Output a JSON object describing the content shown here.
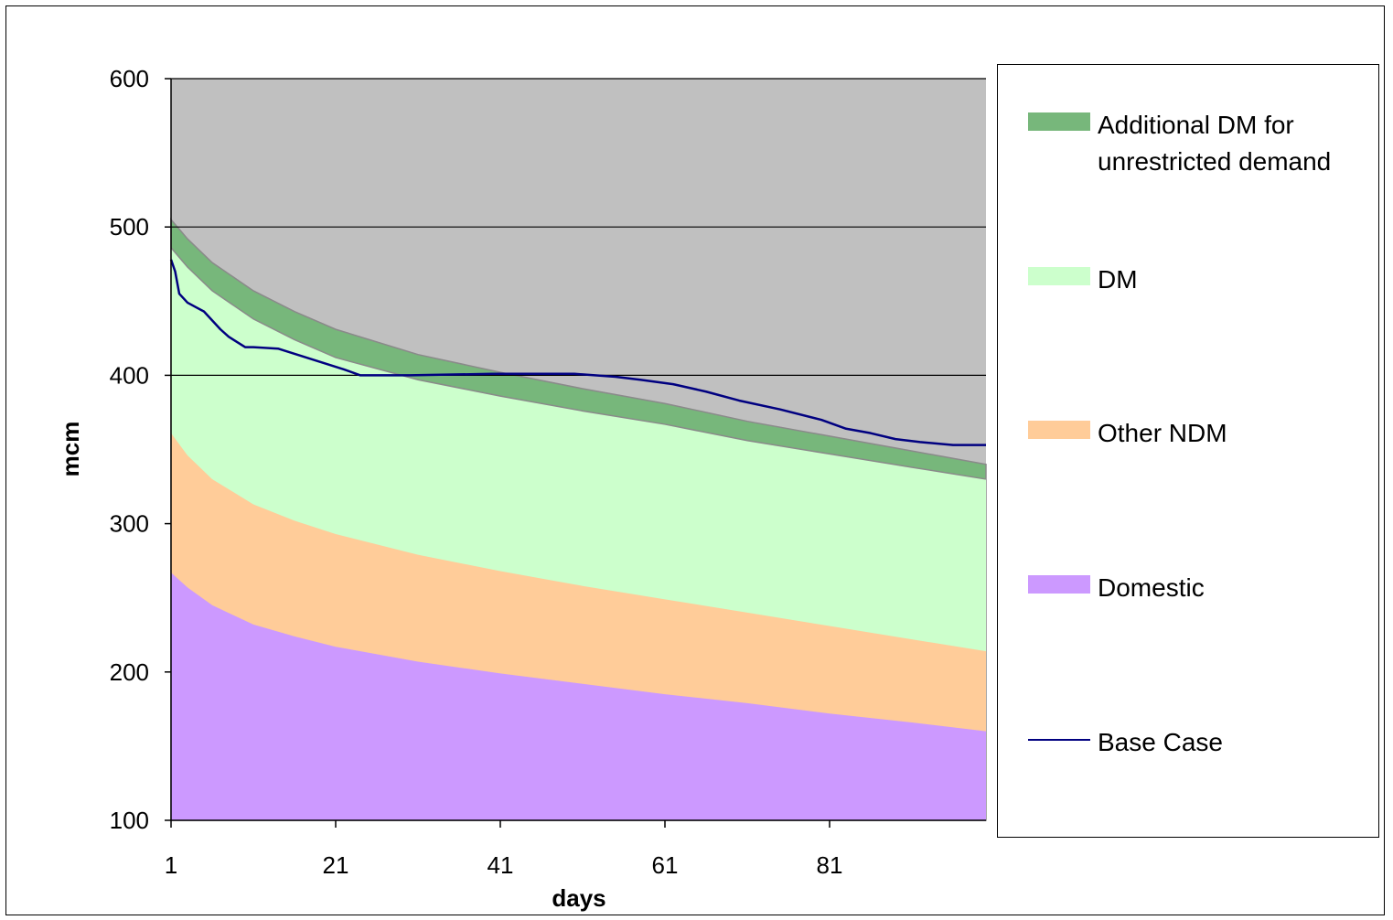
{
  "chart_data": {
    "type": "area",
    "title": "",
    "xlabel": "days",
    "ylabel": "mcm",
    "xlim": [
      1,
      100
    ],
    "ylim": [
      100,
      600
    ],
    "x_ticks": [
      1,
      21,
      41,
      61,
      81
    ],
    "y_ticks": [
      100,
      200,
      300,
      400,
      500,
      600
    ],
    "gridlines_y": [
      400,
      500,
      600
    ],
    "grid": true,
    "plot_background": "#c0c0c0",
    "legend_position": "right",
    "stacked_series_top_boundaries": {
      "x": [
        1,
        3,
        6,
        11,
        16,
        21,
        31,
        41,
        51,
        61,
        71,
        81,
        91,
        100
      ],
      "Domestic": [
        267,
        257,
        245,
        232,
        224,
        217,
        207,
        199,
        192,
        185,
        179,
        172,
        166,
        160
      ],
      "Other NDM": [
        361,
        346,
        330,
        313,
        302,
        293,
        279,
        268,
        258,
        249,
        240,
        231,
        222,
        214
      ],
      "DM": [
        486,
        473,
        457,
        438,
        424,
        412,
        397,
        386,
        376,
        367,
        356,
        347,
        338,
        330
      ],
      "Additional DM for unrestricted demand": [
        505,
        492,
        476,
        457,
        443,
        431,
        414,
        402,
        391,
        381,
        369,
        359,
        349,
        340
      ]
    },
    "series": [
      {
        "name": "Additional DM for unrestricted demand",
        "color": "#77b77b"
      },
      {
        "name": "DM",
        "color": "#ccffcc"
      },
      {
        "name": "Other NDM",
        "color": "#ffcc99"
      },
      {
        "name": "Domestic",
        "color": "#cc99ff"
      },
      {
        "name": "Base Case",
        "color": "#000080",
        "kind": "line",
        "x": [
          1,
          1.5,
          2,
          3,
          4,
          5,
          6,
          7,
          8,
          10,
          11,
          14,
          18,
          22,
          24,
          30,
          40,
          50,
          55,
          58,
          62,
          66,
          70,
          75,
          80,
          83,
          86,
          89,
          92,
          96,
          100
        ],
        "values": [
          478,
          470,
          455,
          449,
          446,
          443,
          437,
          431,
          426,
          419,
          419,
          418,
          411,
          404,
          400,
          400,
          401,
          401,
          399,
          397,
          394,
          389,
          383,
          377,
          370,
          364,
          361,
          357,
          355,
          353,
          353
        ]
      }
    ]
  },
  "legend": {
    "items": [
      {
        "label": "Additional DM for\nunrestricted demand",
        "color": "#77b77b"
      },
      {
        "label": "DM",
        "color": "#ccffcc"
      },
      {
        "label": "Other NDM",
        "color": "#ffcc99"
      },
      {
        "label": "Domestic",
        "color": "#cc99ff"
      },
      {
        "label": "Base Case",
        "color": "#000080"
      }
    ]
  }
}
